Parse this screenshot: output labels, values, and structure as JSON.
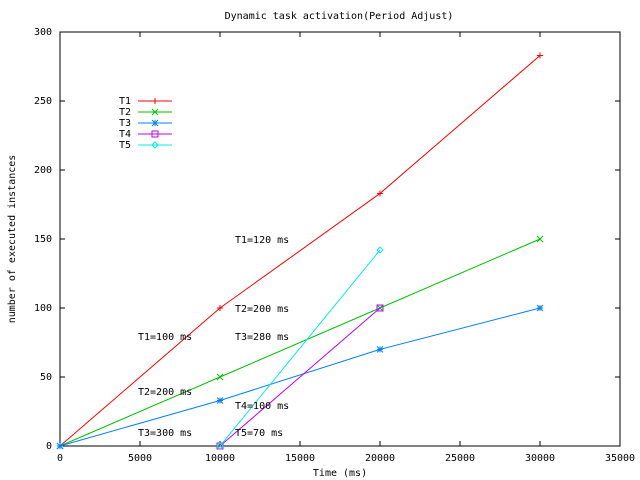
{
  "chart_data": {
    "type": "line",
    "title": "Dynamic task activation(Period Adjust)",
    "x_label": "Time (ms)",
    "y_label": "number of executed instances",
    "xlim": [
      0,
      35000
    ],
    "xticks": [
      0,
      5000,
      10000,
      15000,
      20000,
      25000,
      30000,
      35000
    ],
    "ylim": [
      0,
      300
    ],
    "yticks": [
      0,
      50,
      100,
      150,
      200,
      250,
      300
    ],
    "legend": "top-left",
    "series": [
      {
        "name": "T1",
        "color": "#ff0000",
        "marker": "plus",
        "x": [
          0,
          10000,
          20000,
          30000
        ],
        "values": [
          0,
          100,
          183,
          283
        ]
      },
      {
        "name": "T2",
        "color": "#00c000",
        "marker": "cross",
        "x": [
          0,
          10000,
          20000,
          30000
        ],
        "values": [
          0,
          50,
          100,
          150
        ]
      },
      {
        "name": "T3",
        "color": "#0080ff",
        "marker": "star",
        "x": [
          0,
          10000,
          20000,
          30000
        ],
        "values": [
          0,
          33,
          70,
          100
        ]
      },
      {
        "name": "T4",
        "color": "#c000ff",
        "marker": "square",
        "x": [
          10000,
          20000
        ],
        "values": [
          0,
          100
        ]
      },
      {
        "name": "T5",
        "color": "#00eeee",
        "marker": "diamond",
        "x": [
          10000,
          20000
        ],
        "values": [
          0,
          142
        ]
      }
    ],
    "annotations": [
      "T1=120 ms",
      "T2=200 ms",
      "T3=280 ms",
      "T1=100 ms",
      "T2=200 ms",
      "T3=300 ms",
      "T4=100 ms",
      "T5=70 ms"
    ]
  }
}
